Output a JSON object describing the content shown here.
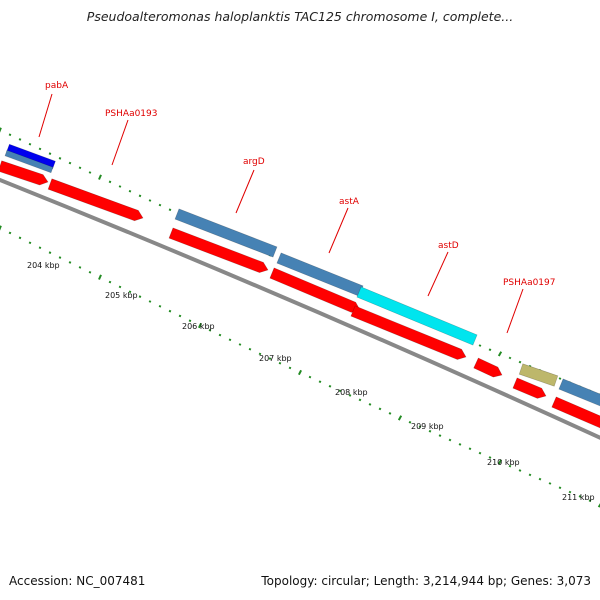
{
  "title": "Pseudoalteromonas haloplanktis TAC125 chromosome I, complete...",
  "footer": {
    "accession": "Accession: NC_007481",
    "summary": "Topology: circular; Length: 3,214,944 bp; Genes: 3,073"
  },
  "colors": {
    "cds": "#ff0000",
    "gene": "#4682b4",
    "highlight_cyan": "#00e5ee",
    "highlight_blue": "#0000ee",
    "khaki": "#bdb76b",
    "tick": "#228b22",
    "backbone": "#888888",
    "label": "#e00000"
  },
  "kbp_labels": [
    "204 kbp",
    "205 kbp",
    "206 kbp",
    "207 kbp",
    "208 kbp",
    "209 kbp",
    "210 kbp",
    "211 kbp"
  ],
  "gene_labels": [
    "pabA",
    "PSHAa0193",
    "argD",
    "astA",
    "astD",
    "PSHAa0197"
  ]
}
